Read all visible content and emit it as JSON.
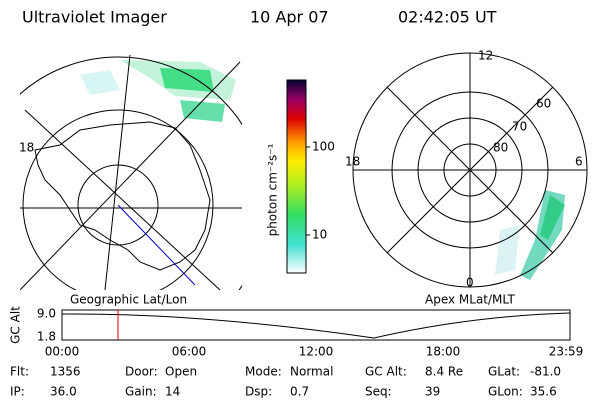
{
  "header": {
    "title": "Ultraviolet Imager",
    "date": "10 Apr 07",
    "time": "02:42:05 UT"
  },
  "left_panel": {
    "label": "Geographic Lat/Lon",
    "edge_label": "18"
  },
  "right_panel": {
    "label": "Apex MLat/MLT",
    "mlt_labels": [
      "12",
      "18",
      "6",
      "0"
    ],
    "lat_labels": [
      "60",
      "70",
      "80"
    ]
  },
  "colorbar": {
    "title": "photon cm⁻²s⁻¹",
    "ticks": [
      "100",
      "10"
    ]
  },
  "timeline": {
    "y_label": "GC Alt",
    "y_ticks": [
      "9.0",
      "1.8"
    ],
    "x_ticks": [
      "00:00",
      "06:00",
      "12:00",
      "18:00",
      "23:59"
    ]
  },
  "info": {
    "rows": [
      [
        {
          "label": "Flt:",
          "value": "1356"
        },
        {
          "label": "Door:",
          "value": "Open"
        },
        {
          "label": "Mode:",
          "value": "Normal"
        },
        {
          "label": "GC Alt:",
          "value": "8.4 Re"
        },
        {
          "label": "GLat:",
          "value": "-81.0"
        }
      ],
      [
        {
          "label": "IP:",
          "value": "36.0"
        },
        {
          "label": "Gain:",
          "value": "14"
        },
        {
          "label": "Dsp:",
          "value": "0.7"
        },
        {
          "label": "Seq:",
          "value": "39"
        },
        {
          "label": "GLon:",
          "value": "35.6"
        }
      ]
    ]
  }
}
